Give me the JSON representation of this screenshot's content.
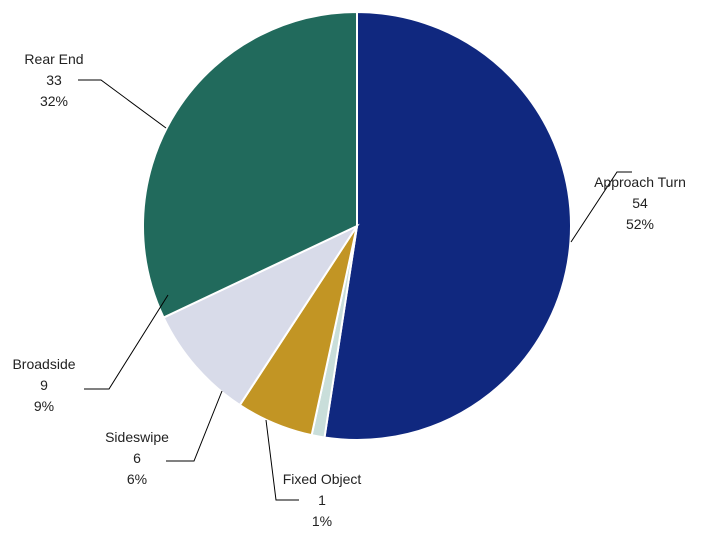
{
  "chart_data": {
    "type": "pie",
    "title": "",
    "slices": [
      {
        "label": "Approach Turn",
        "value": 54,
        "percent": "52%",
        "color": "#10287F"
      },
      {
        "label": "Fixed Object",
        "value": 1,
        "percent": "1%",
        "color": "#C9DEDA"
      },
      {
        "label": "Sideswipe",
        "value": 6,
        "percent": "6%",
        "color": "#C29524"
      },
      {
        "label": "Broadside",
        "value": 9,
        "percent": "9%",
        "color": "#D8DBE9"
      },
      {
        "label": "Rear End",
        "value": 33,
        "percent": "32%",
        "color": "#216A5C"
      }
    ],
    "start_angle": "12 o'clock",
    "direction": "clockwise",
    "legend": "none"
  }
}
